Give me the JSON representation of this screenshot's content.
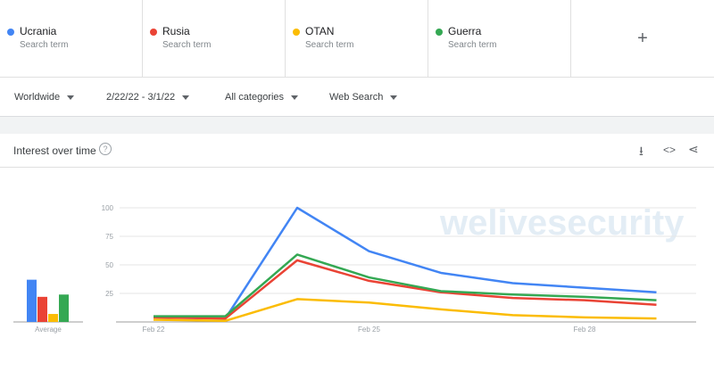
{
  "terms": [
    {
      "name": "Ucrania",
      "sub": "Search term",
      "color": "#4285f4"
    },
    {
      "name": "Rusia",
      "sub": "Search term",
      "color": "#ea4335"
    },
    {
      "name": "OTAN",
      "sub": "Search term",
      "color": "#fbbc04"
    },
    {
      "name": "Guerra",
      "sub": "Search term",
      "color": "#34a853"
    }
  ],
  "add_label": "+",
  "filters": {
    "region": "Worldwide",
    "date": "2/22/22 - 3/1/22",
    "category": "All categories",
    "property": "Web Search"
  },
  "card": {
    "title": "Interest over time",
    "help": "?",
    "icons": [
      "download-icon",
      "embed-icon",
      "share-icon"
    ]
  },
  "watermark": "welivesecurity",
  "chart_data": {
    "type": "line",
    "x": [
      "Feb 22",
      "Feb 23",
      "Feb 24",
      "Feb 25",
      "Feb 26",
      "Feb 27",
      "Feb 28",
      "Mar 1"
    ],
    "xticks": [
      "Feb 22",
      "Feb 25",
      "Feb 28"
    ],
    "yticks": [
      "25",
      "50",
      "75",
      "100"
    ],
    "ylim": [
      0,
      100
    ],
    "grid": true,
    "series": [
      {
        "name": "Ucrania",
        "color": "#4285f4",
        "values": [
          4,
          3,
          100,
          62,
          43,
          34,
          30,
          26
        ],
        "average": 37
      },
      {
        "name": "Rusia",
        "color": "#ea4335",
        "values": [
          4,
          3,
          54,
          36,
          26,
          21,
          19,
          15
        ],
        "average": 22
      },
      {
        "name": "OTAN",
        "color": "#fbbc04",
        "values": [
          2,
          1,
          20,
          17,
          11,
          6,
          4,
          3
        ],
        "average": 7
      },
      {
        "name": "Guerra",
        "color": "#34a853",
        "values": [
          5,
          5,
          59,
          39,
          27,
          24,
          22,
          19
        ],
        "average": 24
      }
    ],
    "average_label": "Average"
  }
}
